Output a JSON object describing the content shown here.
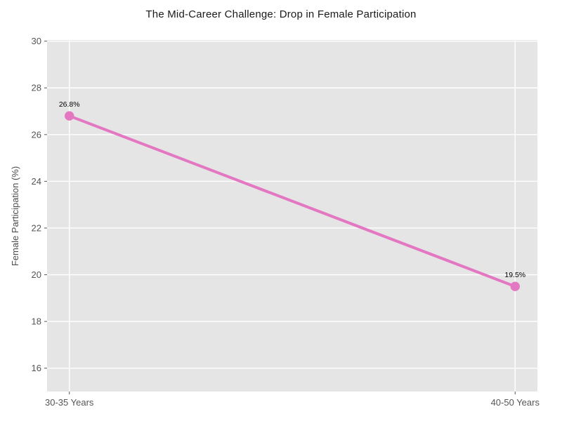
{
  "chart_data": {
    "type": "line",
    "title": "The Mid-Career Challenge: Drop in Female Participation",
    "categories": [
      "30-35 Years",
      "40-50 Years"
    ],
    "values": [
      26.8,
      19.5
    ],
    "point_labels": [
      "26.8%",
      "19.5%"
    ],
    "xlabel": "",
    "ylabel": "Female Participation (%)",
    "ylim": [
      15,
      30.05
    ],
    "yticks": [
      16,
      18,
      20,
      22,
      24,
      26,
      28,
      30
    ],
    "grid": true,
    "legend": "none",
    "style": {
      "line_color": "#e377c2",
      "marker_color": "#e377c2",
      "plot_bg": "#e5e5e5",
      "grid_color": "#ffffff",
      "tick_mark_color": "#555555",
      "tick_label_color": "#555555",
      "axis_label_color": "#4d4d4d",
      "title_color": "#1a1a1a",
      "data_label_color": "#000000"
    }
  }
}
